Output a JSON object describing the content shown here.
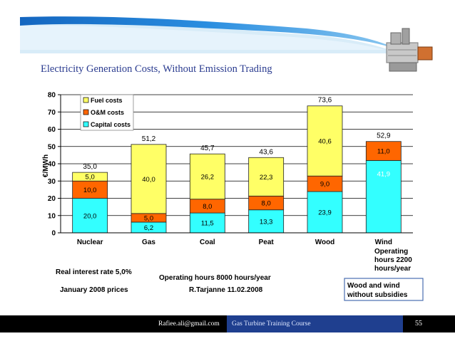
{
  "slide": {
    "title": "Electricity Generation Costs, Without Emission Trading",
    "footer_email": "Rafiee.ali@gmail.com",
    "footer_course": "Gas Turbine Training Course",
    "page_number": "55"
  },
  "colors": {
    "fuel": "#ffff66",
    "om": "#ff6600",
    "capital": "#33ffff",
    "header_blue": "#1e7fd0",
    "footer_course_bg": "#1f3f8f"
  },
  "chart_data": {
    "type": "bar",
    "stacked": true,
    "title": "",
    "ylabel": "€/MWh",
    "ylim": [
      0,
      80
    ],
    "yticks": [
      "0",
      "10",
      "20",
      "30",
      "40",
      "50",
      "60",
      "70",
      "80"
    ],
    "categories": [
      "Nuclear",
      "Gas",
      "Coal",
      "Peat",
      "Wood",
      "Wind"
    ],
    "series": [
      {
        "name": "Capital costs",
        "values": [
          20.0,
          6.2,
          11.5,
          13.3,
          23.9,
          41.9
        ],
        "labels": [
          "20,0",
          "6,2",
          "11,5",
          "13,3",
          "23,9",
          "41,9"
        ]
      },
      {
        "name": "O&M costs",
        "values": [
          10.0,
          5.0,
          8.0,
          8.0,
          9.0,
          11.0
        ],
        "labels": [
          "10,0",
          "5,0",
          "8,0",
          "8,0",
          "9,0",
          "11,0"
        ]
      },
      {
        "name": "Fuel costs",
        "values": [
          5.0,
          40.0,
          26.2,
          22.3,
          40.6,
          0
        ],
        "labels": [
          "5,0",
          "40,0",
          "26,2",
          "22,3",
          "40,6",
          ""
        ]
      }
    ],
    "totals": [
      35.0,
      51.2,
      45.7,
      43.6,
      73.6,
      52.9
    ],
    "total_labels": [
      "35,0",
      "51,2",
      "45,7",
      "43,6",
      "73,6",
      "52,9"
    ],
    "legend": [
      "Fuel costs",
      "O&M costs",
      "Capital costs"
    ],
    "legend_position": "top-left",
    "notes": {
      "interest": "Real interest rate 5,0%",
      "prices": "January 2008 prices",
      "operating": "Operating hours 8000 hours/year",
      "author": "R.Tarjanne 11.02.2008",
      "wind_hours_1": "Operating",
      "wind_hours_2": "hours 2200",
      "wind_hours_3": "hours/year",
      "wind_box_1": "Wood and wind",
      "wind_box_2": "without subsidies"
    }
  }
}
